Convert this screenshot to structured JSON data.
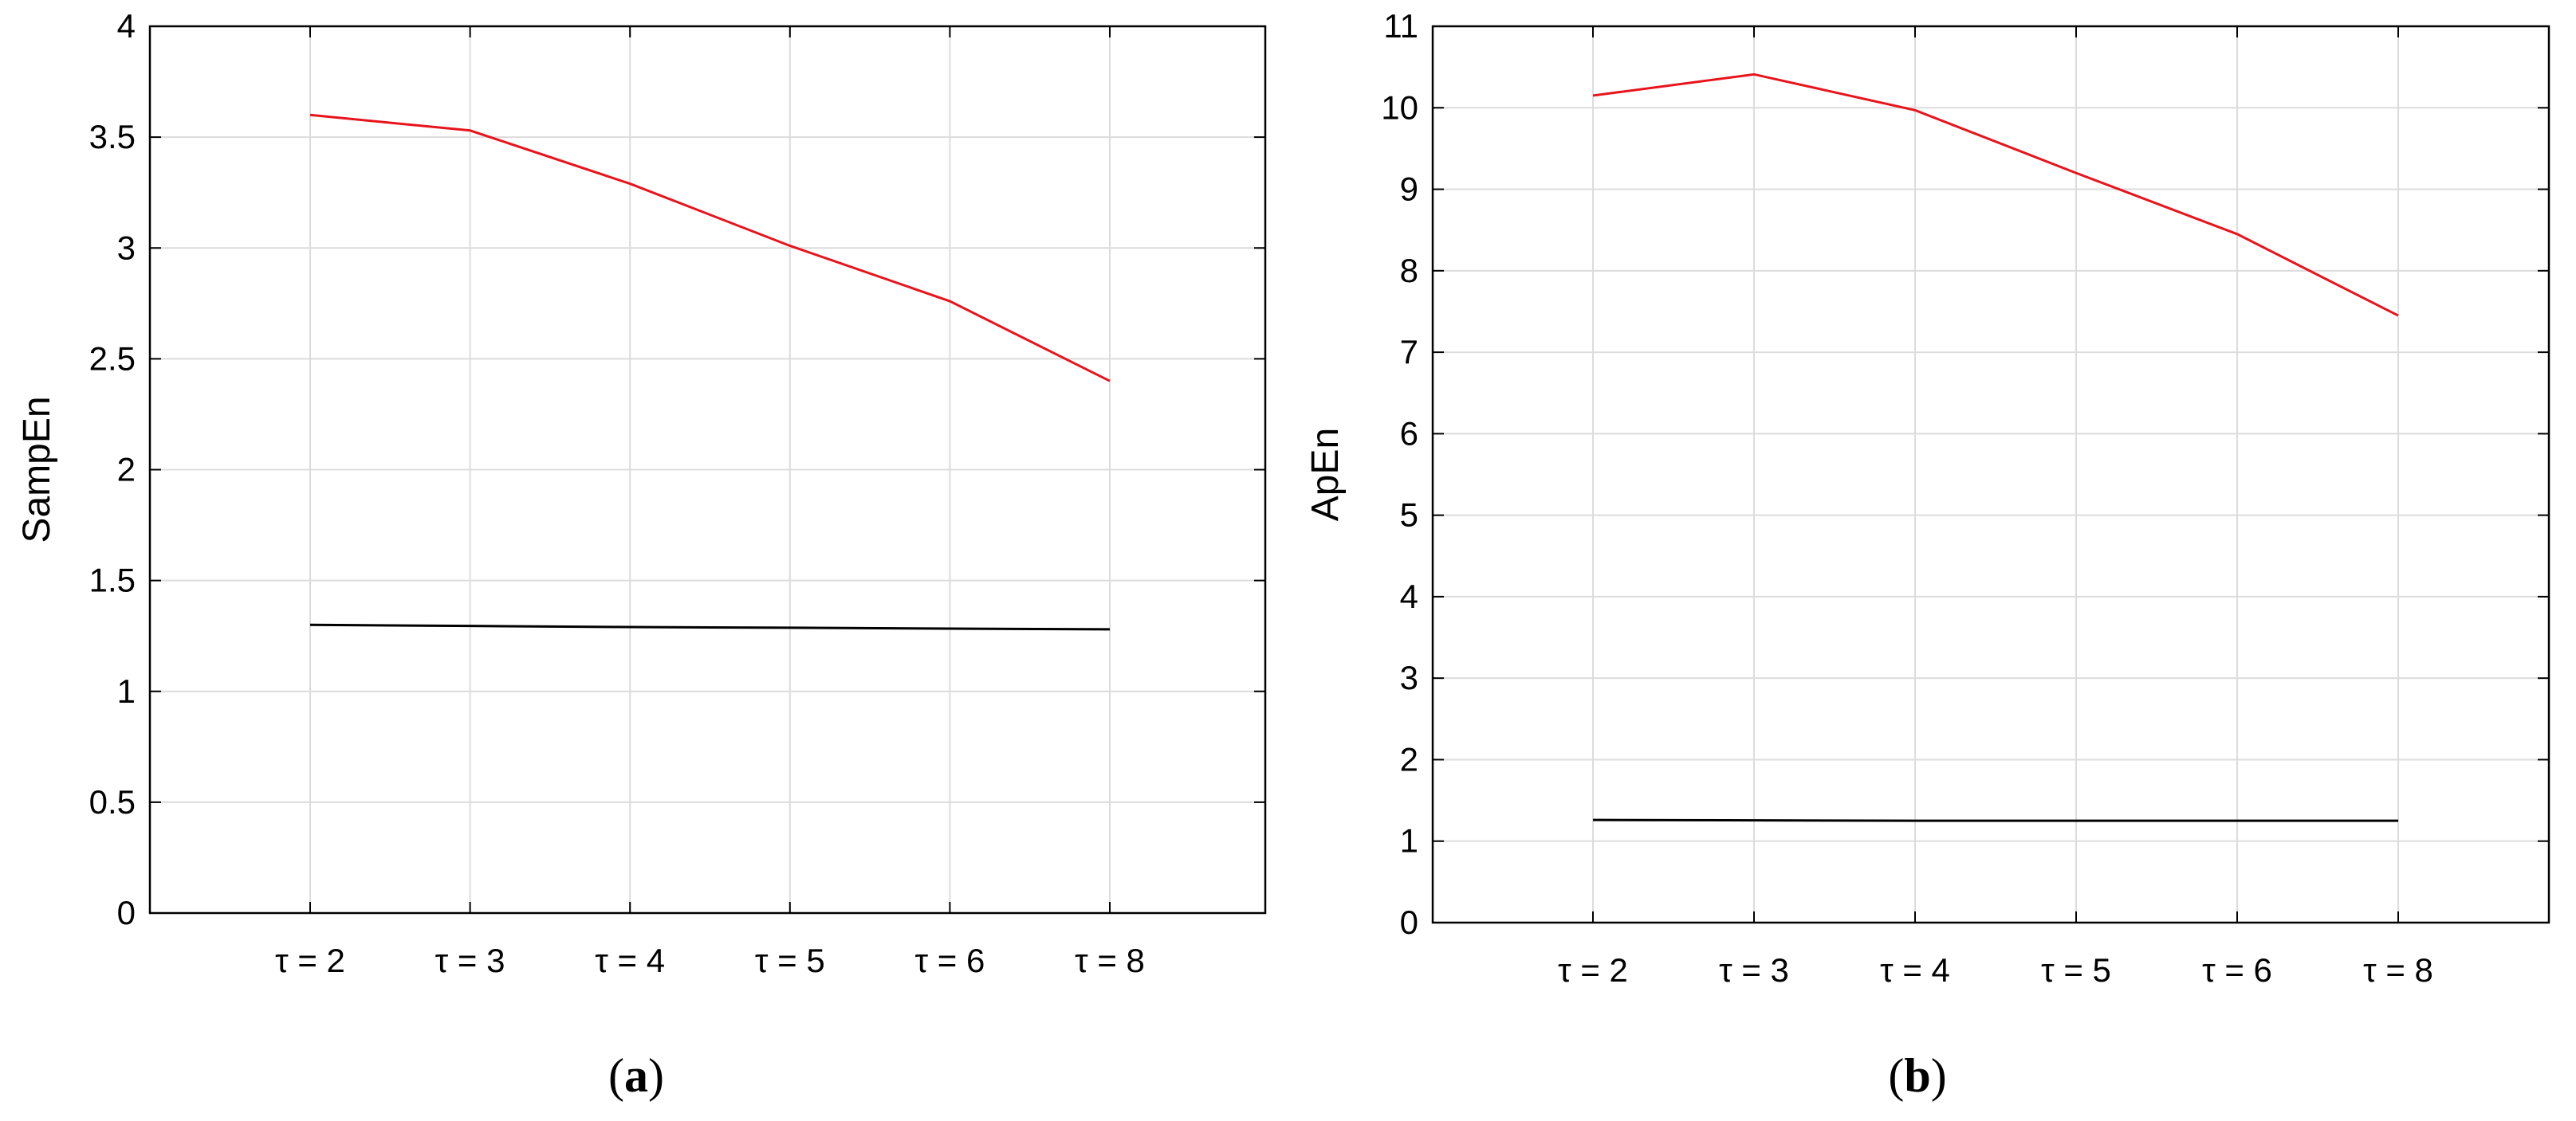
{
  "chart_data": [
    {
      "type": "line",
      "panel_label": "a",
      "ylabel": "SampEn",
      "xlabel": "",
      "categories": [
        "τ = 2",
        "τ = 3",
        "τ = 4",
        "τ = 5",
        "τ = 6",
        "τ = 8"
      ],
      "ylim": [
        0,
        4
      ],
      "yticks": [
        0,
        0.5,
        1,
        1.5,
        2,
        2.5,
        3,
        3.5,
        4
      ],
      "ytick_labels": [
        "0",
        "0.5",
        "1",
        "1.5",
        "2",
        "2.5",
        "3",
        "3.5",
        "4"
      ],
      "grid": true,
      "series": [
        {
          "color": "#e8141c",
          "values": [
            3.6,
            3.53,
            3.29,
            3.01,
            2.76,
            2.4
          ]
        },
        {
          "color": "#000000",
          "values": [
            1.3,
            1.295,
            1.29,
            1.287,
            1.283,
            1.28
          ]
        }
      ]
    },
    {
      "type": "line",
      "panel_label": "b",
      "ylabel": "ApEn",
      "xlabel": "",
      "categories": [
        "τ = 2",
        "τ = 3",
        "τ = 4",
        "τ = 5",
        "τ = 6",
        "τ = 8"
      ],
      "ylim": [
        0,
        11
      ],
      "yticks": [
        0,
        1,
        2,
        3,
        4,
        5,
        6,
        7,
        8,
        9,
        10,
        11
      ],
      "ytick_labels": [
        "0",
        "1",
        "2",
        "3",
        "4",
        "5",
        "6",
        "7",
        "8",
        "9",
        "10",
        "11"
      ],
      "grid": true,
      "series": [
        {
          "color": "#e8141c",
          "values": [
            10.15,
            10.41,
            9.97,
            9.2,
            8.45,
            7.45
          ]
        },
        {
          "color": "#000000",
          "values": [
            1.26,
            1.255,
            1.25,
            1.25,
            1.25,
            1.25
          ]
        }
      ]
    }
  ]
}
